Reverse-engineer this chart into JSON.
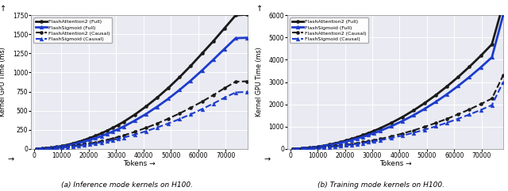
{
  "tokens": [
    1024,
    2048,
    3072,
    4096,
    5120,
    6144,
    7168,
    8192,
    10240,
    12288,
    14336,
    16384,
    18432,
    20480,
    22528,
    24576,
    26624,
    28672,
    30720,
    32768,
    36864,
    40960,
    45056,
    49152,
    53248,
    57344,
    61440,
    65536,
    69632,
    73728,
    77824
  ],
  "inf_fa2_full": [
    1,
    2,
    4,
    7,
    10,
    14,
    19,
    25,
    38,
    54,
    72,
    93,
    117,
    143,
    171,
    202,
    236,
    273,
    312,
    354,
    449,
    555,
    672,
    800,
    940,
    1090,
    1250,
    1410,
    1580,
    1750,
    1760
  ],
  "inf_fsi_full": [
    1,
    2,
    3,
    6,
    9,
    12,
    16,
    21,
    32,
    45,
    60,
    77,
    97,
    118,
    141,
    167,
    195,
    225,
    257,
    292,
    370,
    457,
    553,
    658,
    773,
    896,
    1028,
    1168,
    1310,
    1450,
    1455
  ],
  "inf_fa2_causal": [
    1,
    1,
    2,
    4,
    5,
    7,
    10,
    13,
    19,
    27,
    36,
    46,
    58,
    71,
    85,
    100,
    117,
    135,
    155,
    176,
    223,
    275,
    333,
    396,
    465,
    539,
    619,
    704,
    795,
    880,
    885
  ],
  "inf_fsi_causal": [
    1,
    1,
    2,
    3,
    5,
    6,
    8,
    11,
    16,
    23,
    30,
    39,
    49,
    60,
    71,
    84,
    98,
    114,
    130,
    148,
    187,
    231,
    280,
    333,
    391,
    454,
    521,
    593,
    670,
    740,
    745
  ],
  "train_fa2_full": [
    2,
    5,
    10,
    17,
    26,
    37,
    49,
    64,
    99,
    141,
    190,
    246,
    308,
    376,
    451,
    531,
    618,
    712,
    812,
    919,
    1157,
    1424,
    1724,
    2055,
    2416,
    2810,
    3234,
    3690,
    4178,
    4697,
    6500
  ],
  "train_fsi_full": [
    2,
    4,
    9,
    15,
    23,
    32,
    43,
    56,
    87,
    124,
    166,
    215,
    269,
    329,
    394,
    465,
    540,
    622,
    709,
    803,
    1011,
    1245,
    1506,
    1796,
    2112,
    2457,
    2829,
    3229,
    3657,
    4113,
    6000
  ],
  "train_fa2_causal": [
    1,
    3,
    5,
    9,
    13,
    18,
    24,
    31,
    48,
    68,
    91,
    118,
    148,
    181,
    217,
    255,
    297,
    342,
    390,
    442,
    556,
    685,
    829,
    988,
    1162,
    1351,
    1555,
    1774,
    2009,
    2260,
    3300
  ],
  "train_fsi_causal": [
    1,
    2,
    5,
    8,
    11,
    16,
    21,
    27,
    42,
    59,
    79,
    103,
    129,
    157,
    188,
    222,
    258,
    297,
    339,
    384,
    483,
    595,
    720,
    859,
    1010,
    1175,
    1352,
    1543,
    1747,
    1964,
    3000
  ],
  "inf_ylim": [
    0,
    1750
  ],
  "train_ylim": [
    0,
    6000
  ],
  "inf_yticks": [
    0,
    250,
    500,
    750,
    1000,
    1250,
    1500,
    1750
  ],
  "train_yticks": [
    0,
    1000,
    2000,
    3000,
    4000,
    5000,
    6000
  ],
  "xticks": [
    0,
    10000,
    20000,
    30000,
    40000,
    50000,
    60000,
    70000
  ],
  "xlabel": "Tokens →",
  "ylabel": "Kernel GPU Time (ms)",
  "title_a": "(a) Inference mode kernels on H100.",
  "title_b": "(b) Training mode kernels on H100.",
  "legend_labels": [
    "FlashAttention2 (Full)",
    "FlashSigmoid (Full)",
    "FlashAttention2 (Causal)",
    "FlashSigmoid (Causal)"
  ],
  "color_black": "#1a1a1a",
  "color_blue": "#1c3ccc",
  "bg_color": "#eaeaf2"
}
